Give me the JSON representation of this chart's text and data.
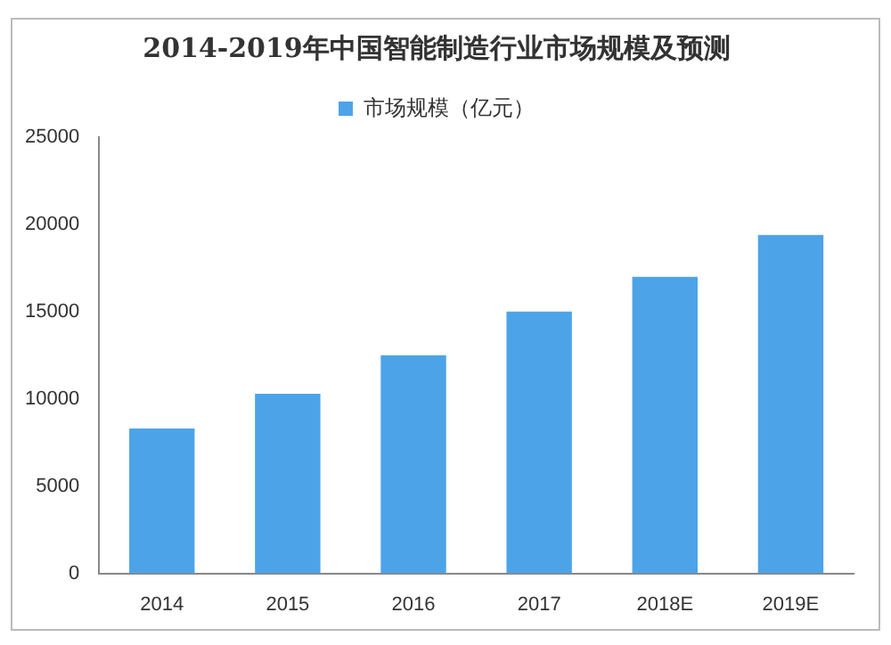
{
  "chart_data": {
    "type": "bar",
    "title": "2014-2019年中国智能制造行业市场规模及预测",
    "categories": [
      "2014",
      "2015",
      "2016",
      "2017",
      "2018E",
      "2019E"
    ],
    "series": [
      {
        "name": "市场规模（亿元）",
        "color": "#4da3e8",
        "values": [
          8300,
          10300,
          12500,
          15000,
          17000,
          19400
        ]
      }
    ],
    "ylim": [
      0,
      25000
    ],
    "yticks": [
      0,
      5000,
      10000,
      15000,
      20000,
      25000
    ],
    "grid": false,
    "legend": "top"
  }
}
